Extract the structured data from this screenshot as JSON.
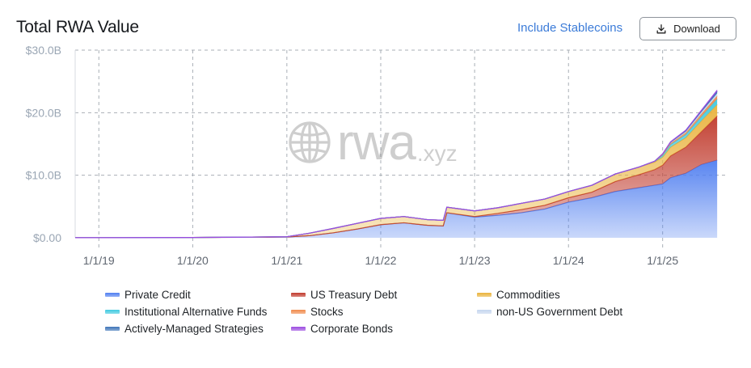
{
  "header": {
    "title": "Total RWA Value",
    "include_stablecoins": "Include Stablecoins",
    "download_label": "Download"
  },
  "watermark": {
    "brand": "rwa",
    "suffix": ".xyz"
  },
  "chart_data": {
    "type": "area",
    "stacked": true,
    "title": "Total RWA Value",
    "x_tick_labels": [
      "1/1/19",
      "1/1/20",
      "1/1/21",
      "1/1/22",
      "1/1/23",
      "1/1/24",
      "1/1/25"
    ],
    "y_tick_labels": [
      "$0.00",
      "$10.0B",
      "$20.0B",
      "$30.0B"
    ],
    "ylim": [
      0,
      30
    ],
    "y_unit": "B USD",
    "grid": true,
    "x": [
      "2018-10-01",
      "2019-01-01",
      "2019-07-01",
      "2020-01-01",
      "2020-07-01",
      "2021-01-01",
      "2021-04-01",
      "2021-07-01",
      "2021-10-01",
      "2022-01-01",
      "2022-04-01",
      "2022-07-01",
      "2022-09-01",
      "2022-09-15",
      "2023-01-01",
      "2023-04-01",
      "2023-07-01",
      "2023-10-01",
      "2024-01-01",
      "2024-04-01",
      "2024-07-01",
      "2024-10-01",
      "2024-12-01",
      "2025-01-01",
      "2025-02-01",
      "2025-04-01",
      "2025-06-01",
      "2025-08-01"
    ],
    "series": [
      {
        "name": "Private Credit",
        "color": "#4f7ef0",
        "values": [
          0.02,
          0.02,
          0.03,
          0.05,
          0.08,
          0.12,
          0.35,
          0.8,
          1.4,
          2.1,
          2.4,
          2.0,
          1.9,
          4.0,
          3.3,
          3.6,
          4.0,
          4.6,
          5.7,
          6.4,
          7.4,
          8.0,
          8.4,
          8.6,
          9.6,
          10.3,
          11.7,
          12.4
        ]
      },
      {
        "name": "US Treasury Debt",
        "color": "#c0392b",
        "values": [
          0,
          0,
          0,
          0,
          0,
          0,
          0,
          0,
          0,
          0,
          0,
          0,
          0,
          0,
          0.1,
          0.3,
          0.5,
          0.6,
          0.7,
          0.9,
          1.6,
          2.1,
          2.5,
          3.0,
          3.5,
          4.2,
          5.3,
          7.1
        ]
      },
      {
        "name": "Commodities",
        "color": "#e9b23a",
        "values": [
          0,
          0,
          0,
          0,
          0.02,
          0.05,
          0.4,
          0.7,
          0.9,
          1.0,
          1.0,
          0.9,
          0.9,
          0.9,
          0.9,
          0.9,
          1.0,
          1.0,
          1.0,
          1.1,
          1.2,
          1.2,
          1.2,
          1.3,
          1.4,
          1.5,
          1.7,
          1.8
        ]
      },
      {
        "name": "Institutional Alternative Funds",
        "color": "#3fc9e0",
        "values": [
          0,
          0,
          0,
          0,
          0,
          0,
          0,
          0,
          0,
          0,
          0,
          0,
          0,
          0,
          0,
          0,
          0,
          0,
          0,
          0,
          0,
          0,
          0.1,
          0.3,
          0.4,
          0.5,
          0.7,
          0.9
        ]
      },
      {
        "name": "Stocks",
        "color": "#f08a4b",
        "values": [
          0,
          0,
          0,
          0,
          0,
          0,
          0,
          0,
          0,
          0,
          0,
          0,
          0,
          0,
          0,
          0,
          0,
          0,
          0,
          0,
          0,
          0,
          0,
          0.1,
          0.2,
          0.3,
          0.4,
          0.5
        ]
      },
      {
        "name": "non-US Government Debt",
        "color": "#c5d6ee",
        "values": [
          0,
          0,
          0,
          0,
          0,
          0,
          0,
          0,
          0,
          0,
          0,
          0,
          0,
          0,
          0,
          0,
          0,
          0,
          0,
          0,
          0,
          0,
          0.05,
          0.1,
          0.15,
          0.2,
          0.3,
          0.4
        ]
      },
      {
        "name": "Actively-Managed Strategies",
        "color": "#3e74b8",
        "values": [
          0,
          0,
          0,
          0,
          0,
          0,
          0,
          0,
          0,
          0,
          0,
          0,
          0,
          0,
          0,
          0,
          0,
          0,
          0,
          0,
          0,
          0,
          0,
          0,
          0.05,
          0.1,
          0.2,
          0.3
        ]
      },
      {
        "name": "Corporate Bonds",
        "color": "#9b4be0",
        "values": [
          0,
          0,
          0,
          0,
          0,
          0,
          0,
          0,
          0,
          0,
          0,
          0,
          0,
          0,
          0,
          0,
          0,
          0,
          0,
          0,
          0,
          0,
          0,
          0,
          0.05,
          0.1,
          0.1,
          0.2
        ]
      }
    ],
    "legend_position": "bottom"
  }
}
